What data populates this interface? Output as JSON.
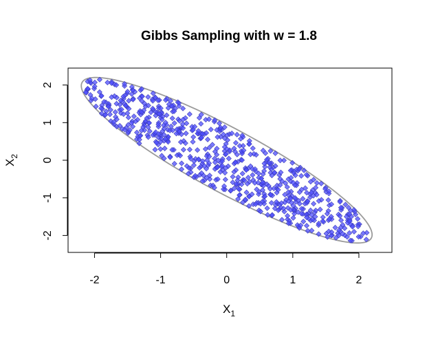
{
  "chart_data": {
    "type": "scatter",
    "title": "Gibbs Sampling with w = 1.8",
    "xlabel": {
      "base": "X",
      "sub": "1"
    },
    "ylabel": {
      "base": "X",
      "sub": "2"
    },
    "xlim": [
      -2.4,
      2.5
    ],
    "ylim": [
      -2.45,
      2.45
    ],
    "x_ticks": [
      -2,
      -1,
      0,
      1,
      2
    ],
    "x_tick_labels": [
      "-2",
      "-1",
      "0",
      "1",
      "2"
    ],
    "y_ticks": [
      -2,
      -1,
      0,
      1,
      2
    ],
    "y_tick_labels": [
      "-2",
      "-1",
      "0",
      "1",
      "2"
    ],
    "grid": false,
    "colors": {
      "points_fill": "#4d4dff",
      "points_stroke": "#3a3ab8",
      "ellipse": "#9a9a9a",
      "box": "#000000"
    },
    "ellipse": {
      "center": [
        0,
        0
      ],
      "correlation": -0.9,
      "radius_sigma": 2.2,
      "description": "contour of the target bivariate normal"
    },
    "series": [
      {
        "marker": "diamond",
        "n_points": 700,
        "distribution": "uniform within the contour ellipse",
        "points": []
      }
    ]
  }
}
